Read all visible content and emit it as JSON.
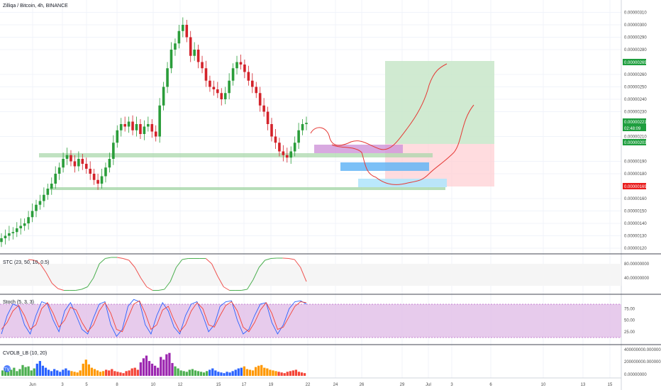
{
  "colors": {
    "up": "#26a69a",
    "down": "#ef5350",
    "candle_up": "#2a9d3a",
    "candle_down": "#d3222a",
    "grid": "#f0f3fa",
    "stc_up": "#4caf50",
    "stc_down": "#ef5350",
    "stoch_fill": "#e1bee7",
    "stoch_k": "#2962ff",
    "stoch_d": "#f44336",
    "badge_green": "#1e9e3e",
    "badge_red": "#e91e1e",
    "target_zone": "#c8e6c9",
    "stop_zone": "#ffcdd2",
    "support_green": "#a5d6a7",
    "box_purple": "#ce93d8",
    "box_blue": "#64b5f6",
    "box_lightblue": "#b3e5fc",
    "drawing_red": "#e53935"
  },
  "header": {
    "symbol_line": "Zilliqa / Bitcoin, 4h, BINANCE"
  },
  "chart_data": [
    {
      "type": "candlestick",
      "title": "Zilliqa / Bitcoin, 4h, BINANCE",
      "ylim": [
        1.2e-06,
        3.12e-06
      ],
      "y_ticks": [
        "0.00000310",
        "0.00000300",
        "0.00000290",
        "0.00000280",
        "0.00000260",
        "0.00000250",
        "0.00000240",
        "0.00000230",
        "0.00000210",
        "0.00000190",
        "0.00000180",
        "0.00000160",
        "0.00000150",
        "0.00000140",
        "0.00000130",
        "0.00000120"
      ],
      "x_ticks": [
        "Jun",
        "3",
        "5",
        "8",
        "10",
        "12",
        "15",
        "17",
        "19",
        "22",
        "24",
        "26",
        "29",
        "Jul",
        "3",
        "6",
        "10",
        "13",
        "15"
      ],
      "price_badges": [
        {
          "value": "0.00000269",
          "color": "green"
        },
        {
          "value": "0.00000221",
          "color": "green"
        },
        {
          "value": "02:48:09",
          "color": "green"
        },
        {
          "value": "0.00000203",
          "color": "green"
        },
        {
          "value": "0.00000169",
          "color": "red"
        }
      ],
      "candles_close": [
        1.28,
        1.3,
        1.32,
        1.33,
        1.36,
        1.38,
        1.4,
        1.45,
        1.5,
        1.55,
        1.58,
        1.63,
        1.68,
        1.72,
        1.8,
        1.85,
        1.92,
        1.95,
        1.9,
        1.86,
        1.92,
        1.88,
        1.84,
        1.8,
        1.75,
        1.72,
        1.78,
        1.85,
        1.92,
        2.05,
        2.15,
        2.2,
        2.18,
        2.22,
        2.15,
        2.2,
        2.12,
        2.18,
        2.2,
        2.14,
        2.1,
        2.35,
        2.5,
        2.65,
        2.8,
        2.85,
        2.95,
        3.0,
        2.9,
        2.75,
        2.8,
        2.7,
        2.65,
        2.55,
        2.5,
        2.48,
        2.45,
        2.4,
        2.45,
        2.55,
        2.65,
        2.7,
        2.68,
        2.62,
        2.55,
        2.5,
        2.45,
        2.35,
        2.3,
        2.2,
        2.1,
        2.05,
        1.98,
        1.95,
        1.93,
        1.98,
        2.05,
        2.15,
        2.2,
        2.21
      ]
    },
    {
      "type": "line",
      "title": "STC (23, 50, 10, 0.5)",
      "y_ticks": [
        "80.00000000",
        "40.00000000"
      ],
      "ylim": [
        0,
        100
      ],
      "series": [
        {
          "values": [
            92,
            90,
            80,
            55,
            25,
            10,
            5,
            5,
            5,
            8,
            15,
            40,
            80,
            95,
            98,
            98,
            95,
            90,
            70,
            40,
            15,
            5,
            5,
            8,
            30,
            70,
            92,
            95,
            95,
            95,
            95,
            80,
            45,
            15,
            5,
            5,
            5,
            8,
            35,
            70,
            90,
            95,
            96,
            96,
            95,
            92,
            70,
            30
          ]
        }
      ]
    },
    {
      "type": "line",
      "title": "Stoch (5, 3, 3)",
      "y_ticks": [
        "75.00",
        "50.00",
        "25.00"
      ],
      "ylim": [
        0,
        100
      ],
      "series": [
        {
          "values": [
            20,
            60,
            85,
            80,
            40,
            20,
            60,
            90,
            85,
            50,
            25,
            70,
            88,
            60,
            30,
            20,
            55,
            85,
            90,
            40,
            15,
            30,
            80,
            95,
            90,
            40,
            20,
            60,
            88,
            70,
            35,
            20,
            60,
            85,
            90,
            60,
            25,
            40,
            80,
            90,
            92,
            50,
            20,
            30,
            60,
            85,
            88,
            45,
            20,
            40,
            75,
            90,
            92,
            85
          ]
        },
        {
          "values": [
            30,
            45,
            70,
            82,
            60,
            30,
            40,
            75,
            88,
            65,
            35,
            50,
            78,
            72,
            45,
            25,
            40,
            70,
            88,
            65,
            30,
            25,
            55,
            85,
            92,
            65,
            30,
            40,
            72,
            80,
            50,
            25,
            40,
            70,
            88,
            75,
            40,
            35,
            60,
            82,
            90,
            70,
            35,
            25,
            45,
            72,
            88,
            65,
            30,
            35,
            58,
            80,
            90,
            88
          ]
        }
      ]
    },
    {
      "type": "bar",
      "title": "CVOLB_LB (10, 20)",
      "y_ticks": [
        "400000000.00000000",
        "200000000.00000000",
        "0.00000000"
      ],
      "ylim": [
        0,
        420000000
      ],
      "values": [
        40,
        55,
        30,
        45,
        60,
        35,
        50,
        80,
        65,
        70,
        40,
        55,
        90,
        110,
        75,
        60,
        45,
        35,
        50,
        40,
        30,
        45,
        55,
        40,
        35,
        30,
        25,
        40,
        90,
        120,
        85,
        60,
        50,
        40,
        30,
        35,
        45,
        40,
        50,
        35,
        30,
        25,
        20,
        35,
        40,
        55,
        60,
        45,
        100,
        130,
        150,
        110,
        90,
        75,
        60,
        140,
        120,
        160,
        170,
        95,
        70,
        55,
        40,
        35,
        30,
        45,
        50,
        40,
        35,
        30,
        25,
        35,
        45,
        55,
        40,
        30,
        25,
        20,
        30,
        25,
        35,
        45,
        55,
        60,
        70,
        50,
        45,
        40,
        65,
        75,
        80,
        60,
        55,
        45,
        40,
        35,
        30,
        25,
        20,
        30,
        35,
        40,
        45,
        30,
        25,
        20
      ]
    }
  ]
}
